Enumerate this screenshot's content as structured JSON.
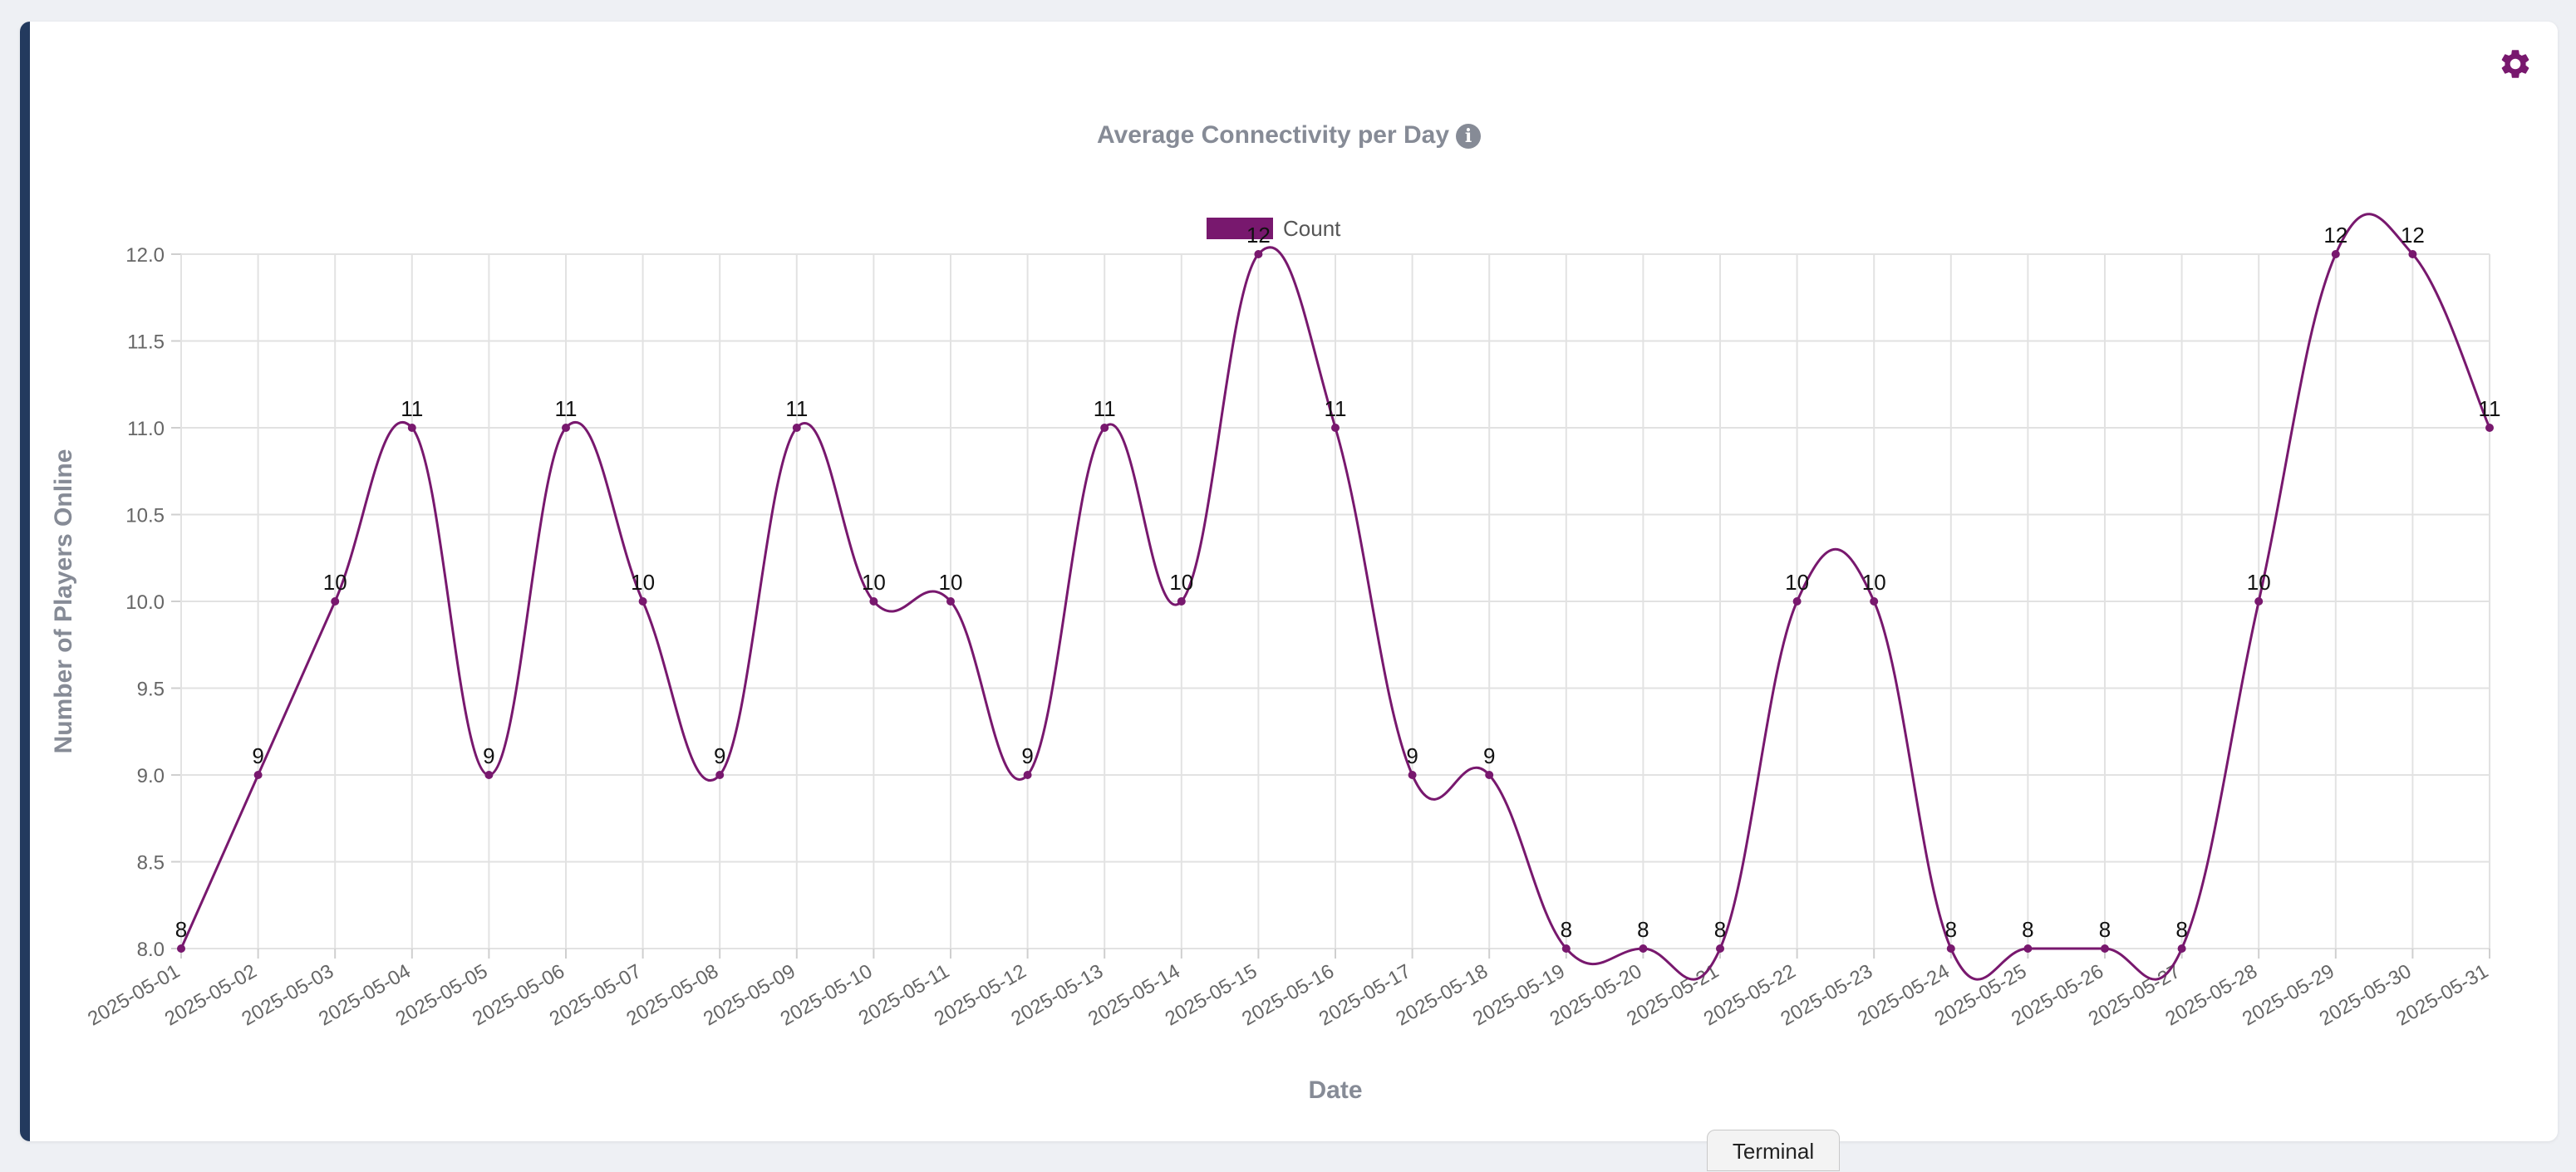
{
  "chart_title": "Average Connectivity per Day",
  "info_icon_glyph": "i",
  "terminal_tab_label": "Terminal",
  "colors": {
    "series": "#78186e",
    "accent_bar": "#233a5e",
    "title": "#868b96"
  },
  "icons": {
    "settings": "gear-icon",
    "info": "info-icon"
  },
  "chart_data": {
    "type": "line",
    "title": "Average Connectivity per Day",
    "xlabel": "Date",
    "ylabel": "Number of Players Online",
    "ylim": [
      8.0,
      12.0
    ],
    "yticks": [
      "8.0",
      "8.5",
      "9.0",
      "9.5",
      "10.0",
      "10.5",
      "11.0",
      "11.5",
      "12.0"
    ],
    "grid": true,
    "legend_position": "top-center",
    "categories": [
      "2025-05-01",
      "2025-05-02",
      "2025-05-03",
      "2025-05-04",
      "2025-05-05",
      "2025-05-06",
      "2025-05-07",
      "2025-05-08",
      "2025-05-09",
      "2025-05-10",
      "2025-05-11",
      "2025-05-12",
      "2025-05-13",
      "2025-05-14",
      "2025-05-15",
      "2025-05-16",
      "2025-05-17",
      "2025-05-18",
      "2025-05-19",
      "2025-05-20",
      "2025-05-21",
      "2025-05-22",
      "2025-05-23",
      "2025-05-24",
      "2025-05-25",
      "2025-05-26",
      "2025-05-27",
      "2025-05-28",
      "2025-05-29",
      "2025-05-30",
      "2025-05-31"
    ],
    "series": [
      {
        "name": "Count",
        "values": [
          8,
          9,
          10,
          11,
          9,
          11,
          10,
          9,
          11,
          10,
          10,
          9,
          11,
          10,
          12,
          11,
          9,
          9,
          8,
          8,
          8,
          10,
          10,
          8,
          8,
          8,
          8,
          10,
          12,
          12,
          11
        ]
      }
    ]
  }
}
